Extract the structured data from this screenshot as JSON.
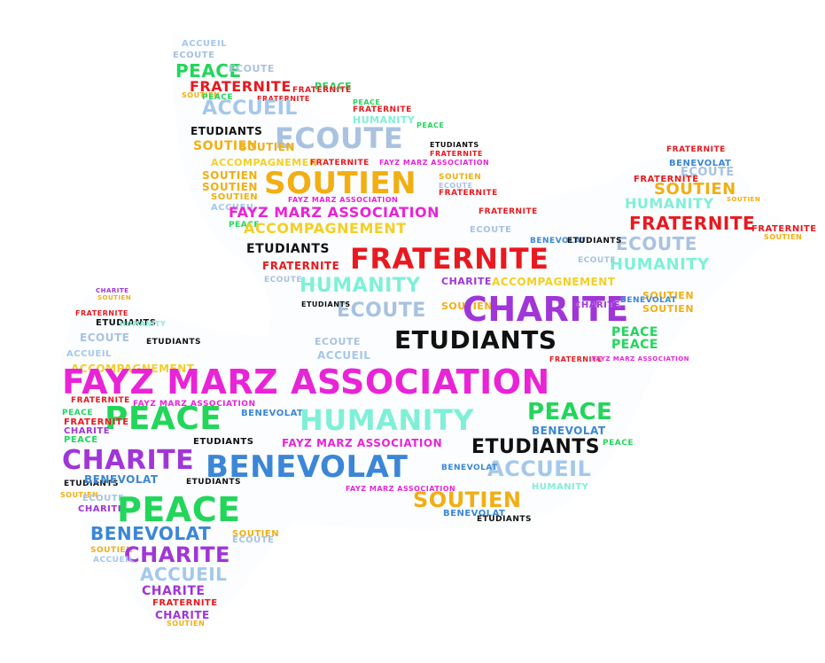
{
  "colors": {
    "peace": "#22d65a",
    "fraternite": "#e8191f",
    "accueil": "#a5c8ea",
    "ecoute": "#a9c2e0",
    "etudiants": "#111111",
    "soutien": "#f2ae12",
    "accompagnement": "#f4cf24",
    "fayz": "#e924d6",
    "humanity": "#7ff0d7",
    "charite": "#a035d8",
    "benevolat": "#3b86d6",
    "association": "#f060ff"
  },
  "words": {
    "peace": "PEACE",
    "fraternite": "FRATERNITE",
    "accueil": "ACCUEIL",
    "ecoute": "ECOUTE",
    "etudiants": "ETUDIANTS",
    "soutien": "SOUTIEN",
    "accompagnement": "ACCOMPAGNEMENT",
    "fayz": "FAYZ MARZ ASSOCIATION",
    "humanity": "HUMANITY",
    "charite": "CHARITE",
    "benevolat": "BENEVOLAT"
  }
}
